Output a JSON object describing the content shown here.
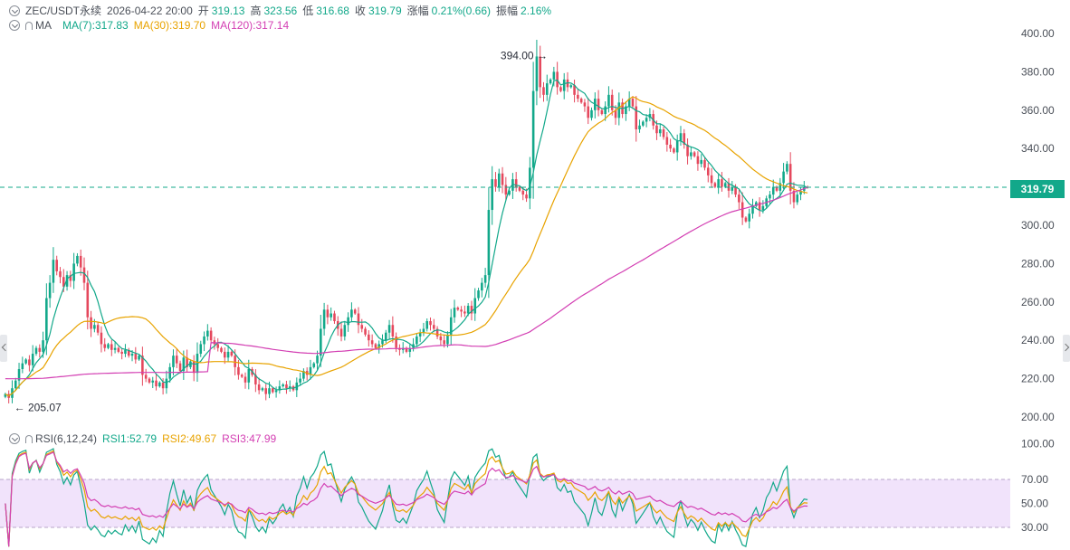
{
  "header": {
    "symbol": "ZEC/USDT永续",
    "datetime": "2026-04-22 20:00",
    "open_label": "开",
    "open": "319.13",
    "high_label": "高",
    "high": "323.56",
    "low_label": "低",
    "low": "316.68",
    "close_label": "收",
    "close": "319.79",
    "change_label": "涨幅",
    "change": "0.21%(0.66)",
    "amplitude_label": "振幅",
    "amplitude": "2.16%"
  },
  "ma_legend": {
    "title": "MA",
    "ma7": "MA(7):317.83",
    "ma30": "MA(30):319.70",
    "ma120": "MA(120):317.14"
  },
  "rsi_legend": {
    "title": "RSI(6,12,24)",
    "rsi1": "RSI1:52.79",
    "rsi2": "RSI2:49.67",
    "rsi3": "RSI3:47.99"
  },
  "current_price_tag": "319.79",
  "colors": {
    "up": "#12a88a",
    "down": "#e5485d",
    "ma7": "#12a88a",
    "ma30": "#e8a300",
    "ma120": "#d33fb3",
    "rsi_band": "#f1e3fb"
  },
  "icons": [
    "chevron-down-icon",
    "bell-icon",
    "arrow-left-icon",
    "arrow-right-icon"
  ],
  "chart_data": [
    {
      "type": "candlestick",
      "title": "ZEC/USDT永续",
      "y_ticks": [
        "400.00",
        "380.00",
        "360.00",
        "340.00",
        "320.00",
        "300.00",
        "280.00",
        "260.00",
        "240.00",
        "220.00",
        "200.00"
      ],
      "ylim": [
        200,
        400
      ],
      "annotations": [
        {
          "label": "394.00 →",
          "value": 394.0
        },
        {
          "label": "← 205.07",
          "value": 205.07
        }
      ],
      "current_price": 319.79,
      "closes": [
        212,
        210,
        215,
        219,
        225,
        228,
        230,
        227,
        233,
        236,
        234,
        240,
        262,
        270,
        282,
        276,
        273,
        268,
        274,
        271,
        280,
        284,
        278,
        270,
        252,
        246,
        248,
        244,
        238,
        236,
        238,
        235,
        236,
        234,
        233,
        235,
        232,
        233,
        230,
        232,
        222,
        220,
        218,
        219,
        216,
        218,
        215,
        220,
        226,
        232,
        228,
        224,
        231,
        226,
        229,
        223,
        233,
        238,
        242,
        245,
        240,
        238,
        236,
        234,
        231,
        234,
        232,
        226,
        222,
        221,
        218,
        225,
        222,
        217,
        214,
        215,
        212,
        215,
        213,
        214,
        216,
        217,
        215,
        216,
        214,
        218,
        220,
        224,
        222,
        226,
        228,
        232,
        246,
        256,
        252,
        254,
        250,
        246,
        242,
        248,
        252,
        256,
        254,
        248,
        246,
        243,
        240,
        238,
        236,
        238,
        240,
        244,
        248,
        242,
        236,
        235,
        236,
        234,
        236,
        238,
        242,
        244,
        246,
        250,
        248,
        246,
        242,
        240,
        238,
        243,
        252,
        257,
        256,
        255,
        254,
        258,
        254,
        262,
        266,
        270,
        274,
        308,
        324,
        320,
        327,
        321,
        316,
        318,
        324,
        320,
        318,
        316,
        314,
        330,
        370,
        388,
        372,
        368,
        374,
        376,
        380,
        372,
        370,
        376,
        372,
        373,
        368,
        366,
        364,
        362,
        356,
        360,
        366,
        360,
        358,
        362,
        368,
        360,
        356,
        364,
        358,
        362,
        366,
        362,
        350,
        352,
        354,
        356,
        358,
        352,
        348,
        350,
        346,
        342,
        340,
        338,
        344,
        348,
        342,
        336,
        338,
        336,
        332,
        334,
        330,
        326,
        322,
        320,
        324,
        320,
        322,
        318,
        320,
        316,
        312,
        304,
        302,
        306,
        310,
        312,
        308,
        310,
        314,
        316,
        320,
        318,
        322,
        328,
        332,
        318,
        312,
        316,
        318,
        320,
        319.79
      ]
    },
    {
      "type": "line",
      "title": "RSI(6,12,24)",
      "y_ticks": [
        "100.00",
        "70.00",
        "50.00",
        "30.00"
      ],
      "ylim": [
        0,
        100
      ],
      "band": [
        30,
        70
      ]
    }
  ]
}
